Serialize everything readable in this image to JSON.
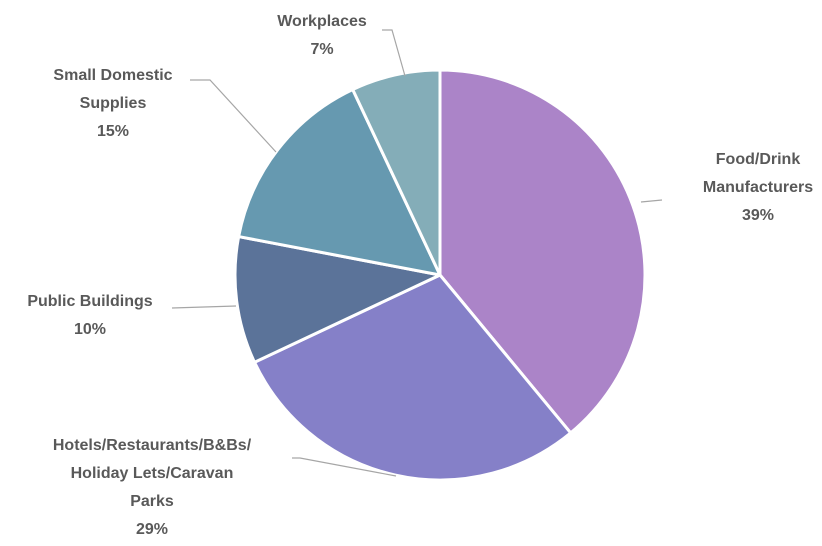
{
  "chart_data": {
    "type": "pie",
    "categories": [
      "Food/Drink Manufacturers",
      "Hotels/Restaurants/B&Bs/ Holiday Lets/Caravan Parks",
      "Public Buildings",
      "Small Domestic Supplies",
      "Workplaces"
    ],
    "values": [
      39,
      29,
      10,
      15,
      7
    ],
    "value_labels": [
      "39%",
      "29%",
      "10%",
      "15%",
      "7%"
    ],
    "colors": [
      "#ab84c8",
      "#8580c8",
      "#5b7399",
      "#6699b0",
      "#84adb8"
    ]
  }
}
